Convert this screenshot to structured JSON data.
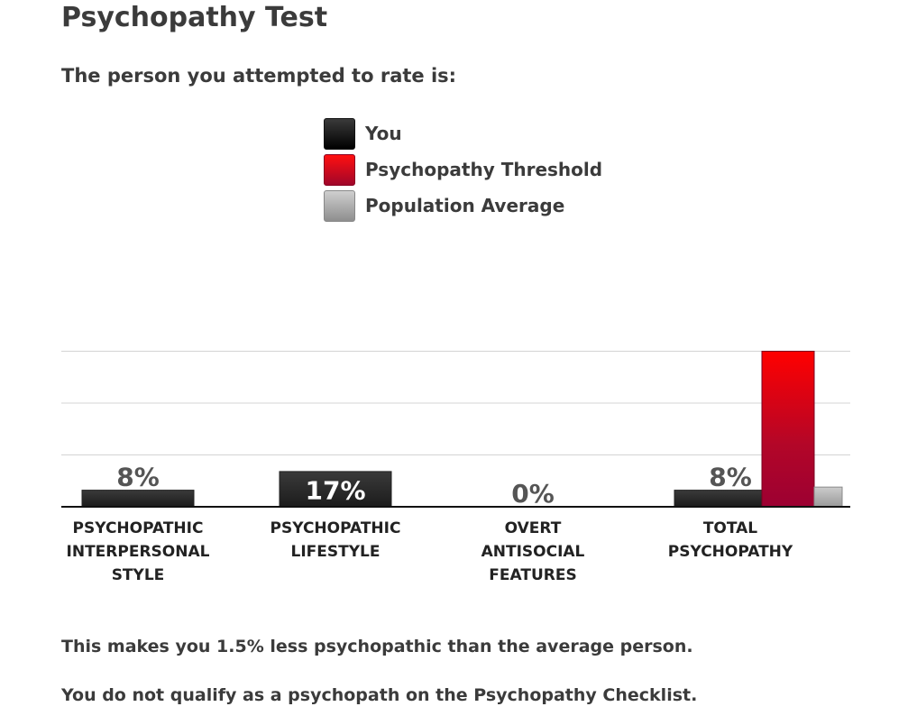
{
  "page": {
    "title": "Psychopathy Test",
    "subtitle": "The person you attempted to rate is:"
  },
  "legend": [
    {
      "label": "You",
      "color": "#2b2b2b"
    },
    {
      "label": "Psychopathy Threshold",
      "color": "#d0021b"
    },
    {
      "label": "Population Average",
      "color": "#aaaaaa"
    }
  ],
  "chart_data": {
    "type": "bar",
    "categories": [
      [
        "PSYCHOPATHIC",
        "INTERPERSONAL",
        "STYLE"
      ],
      [
        "PSYCHOPATHIC",
        "LIFESTYLE"
      ],
      [
        "OVERT",
        "ANTISOCIAL",
        "FEATURES"
      ],
      [
        "TOTAL",
        "PSYCHOPATHY"
      ]
    ],
    "series": [
      {
        "name": "You",
        "values": [
          8,
          17,
          0,
          8
        ],
        "labels": [
          "8%",
          "17%",
          "0%",
          "8%"
        ]
      },
      {
        "name": "Psychopathy Threshold",
        "values": [
          null,
          null,
          null,
          75
        ]
      },
      {
        "name": "Population Average",
        "values": [
          null,
          null,
          null,
          9.5
        ]
      }
    ],
    "ylim": [
      0,
      100
    ],
    "grid": true,
    "legend_position": "top-center"
  },
  "results": {
    "line1": "This makes you 1.5% less psychopathic than the average person.",
    "line2": "You do not qualify as a psychopath on the Psychopathy Checklist."
  }
}
